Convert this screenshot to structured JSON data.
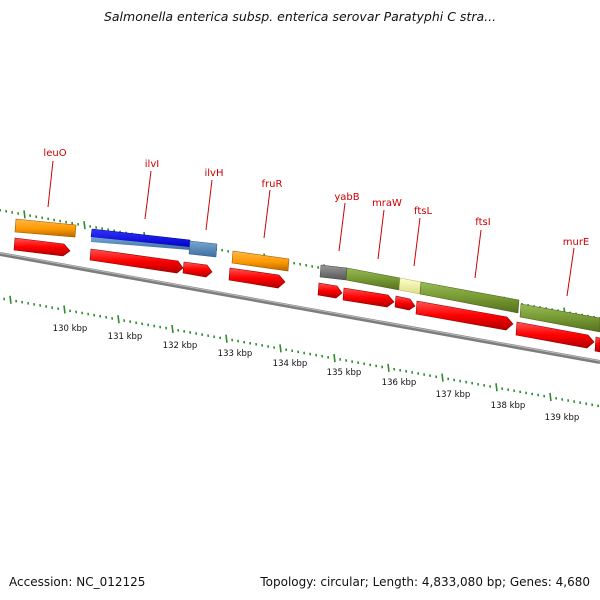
{
  "title": "Salmonella enterica subsp. enterica serovar Paratyphi C stra...",
  "footer": {
    "accession": "Accession: NC_012125",
    "topology": "Topology: circular; Length: 4,833,080 bp; Genes: 4,680"
  },
  "scale": {
    "tick_labels": [
      "130 kbp",
      "131 kbp",
      "132 kbp",
      "133 kbp",
      "134 kbp",
      "135 kbp",
      "136 kbp",
      "137 kbp",
      "138 kbp",
      "139 kbp"
    ]
  },
  "gene_labels": [
    "leuO",
    "ilvI",
    "ilvH",
    "fruR",
    "yabB",
    "mraW",
    "ftsL",
    "ftsI",
    "murE"
  ],
  "colors": {
    "backbone": "#808080",
    "ticks": "#2e8b2e",
    "cds": "#ff0000",
    "orange_feature": "#ff9900",
    "blue_feature": "#0000ee",
    "steelblue_feature": "#5588bb",
    "gray_feature": "#777777",
    "olive_feature": "#779933",
    "pale_feature": "#eeee99",
    "label": "#cc0000"
  }
}
